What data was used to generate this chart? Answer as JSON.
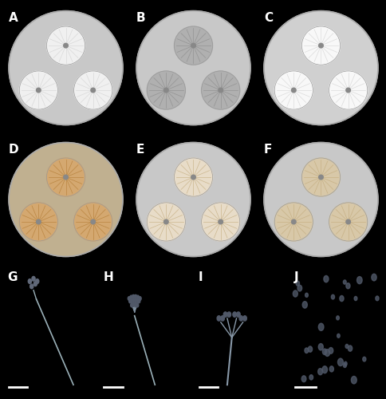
{
  "panel_labels": [
    "A",
    "B",
    "C",
    "D",
    "E",
    "F",
    "G",
    "H",
    "I",
    "J"
  ],
  "label_color": "white",
  "label_fontsize": 11,
  "label_fontweight": "bold",
  "top_bg_colors": [
    "#1a1a1a",
    "#1a1a1a",
    "#2a2a2a",
    "#1a1a1a",
    "#1a1a1a",
    "#1a1a1a"
  ],
  "petri_dish_colors": [
    "#c8c8c8",
    "#c8c8c8",
    "#d0d0d0",
    "#c0b090",
    "#c8c8c8",
    "#c8c8c8"
  ],
  "colony_row1_colors": [
    [
      "#f0f0f0",
      "#f0f0f0",
      "#f0f0f0"
    ],
    [
      "#b0b0b0",
      "#b0b0b0",
      "#b0b0b0"
    ],
    [
      "#f8f8f8",
      "#f8f8f8",
      "#f8f8f8"
    ]
  ],
  "colony_row2_colors": [
    [
      "#d4a870",
      "#d4a870",
      "#d4a870"
    ],
    [
      "#e8dcc8",
      "#e8dcc8",
      "#e8dcc8"
    ],
    [
      "#d8c8a8",
      "#d8c8a8",
      "#d8c8a8"
    ]
  ],
  "micro_bg_color": "#708090",
  "scale_bar_color": "white",
  "border_color": "#555555"
}
